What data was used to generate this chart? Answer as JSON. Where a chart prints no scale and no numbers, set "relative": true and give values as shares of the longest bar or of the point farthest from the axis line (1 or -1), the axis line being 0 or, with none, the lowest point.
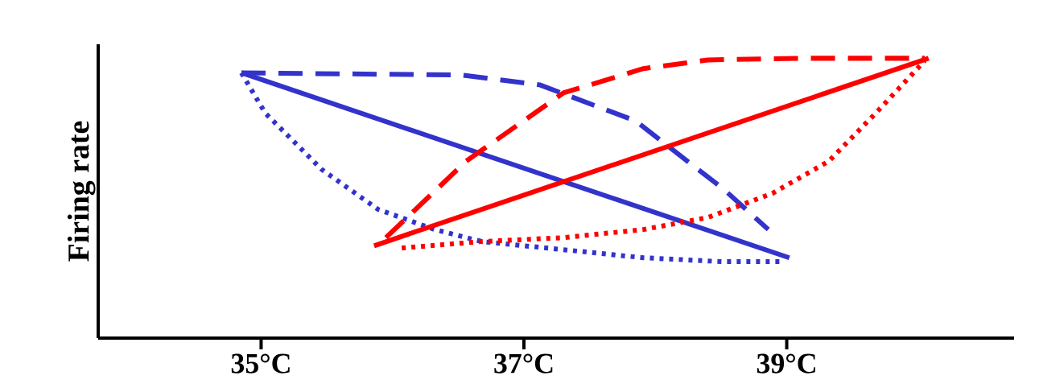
{
  "chart_data": {
    "type": "line",
    "ylabel": "Firing rate",
    "relative": true,
    "xlim": [
      33.76,
      40.73
    ],
    "xticks": [
      {
        "value": 35,
        "label": "35°C"
      },
      {
        "value": 37,
        "label": "37°C"
      },
      {
        "value": 39,
        "label": "39°C"
      }
    ],
    "grid": false,
    "marker": "none",
    "series": [
      {
        "color": "#3333cc",
        "line_style": "solid",
        "x": [
          34.85,
          39.02
        ],
        "values": [
          0.948,
          0.287
        ]
      },
      {
        "color": "#3333cc",
        "line_style": "dashed",
        "x": [
          34.85,
          36.53,
          37.12,
          37.85,
          38.52,
          38.86
        ],
        "values": [
          0.948,
          0.94,
          0.905,
          0.776,
          0.532,
          0.388
        ]
      },
      {
        "color": "#3333cc",
        "line_style": "dotted",
        "x": [
          34.85,
          35.03,
          35.46,
          35.89,
          36.32,
          36.68,
          37.3,
          37.91,
          38.52,
          38.98
        ],
        "values": [
          0.948,
          0.805,
          0.603,
          0.46,
          0.388,
          0.345,
          0.316,
          0.287,
          0.273,
          0.273
        ]
      },
      {
        "color": "#ff0000",
        "line_style": "solid",
        "x": [
          35.86,
          40.08
        ],
        "values": [
          0.33,
          1.0
        ]
      },
      {
        "color": "#ff0000",
        "line_style": "dashed",
        "x": [
          35.95,
          36.56,
          37.3,
          37.91,
          38.4,
          39.13,
          40.05
        ],
        "values": [
          0.359,
          0.632,
          0.876,
          0.963,
          0.994,
          1.0,
          1.0
        ]
      },
      {
        "color": "#ff0000",
        "line_style": "dotted",
        "x": [
          36.07,
          36.68,
          37.3,
          37.91,
          38.4,
          38.89,
          39.32,
          39.68,
          40.05
        ],
        "values": [
          0.322,
          0.345,
          0.359,
          0.388,
          0.431,
          0.517,
          0.632,
          0.805,
          0.991
        ]
      }
    ]
  }
}
